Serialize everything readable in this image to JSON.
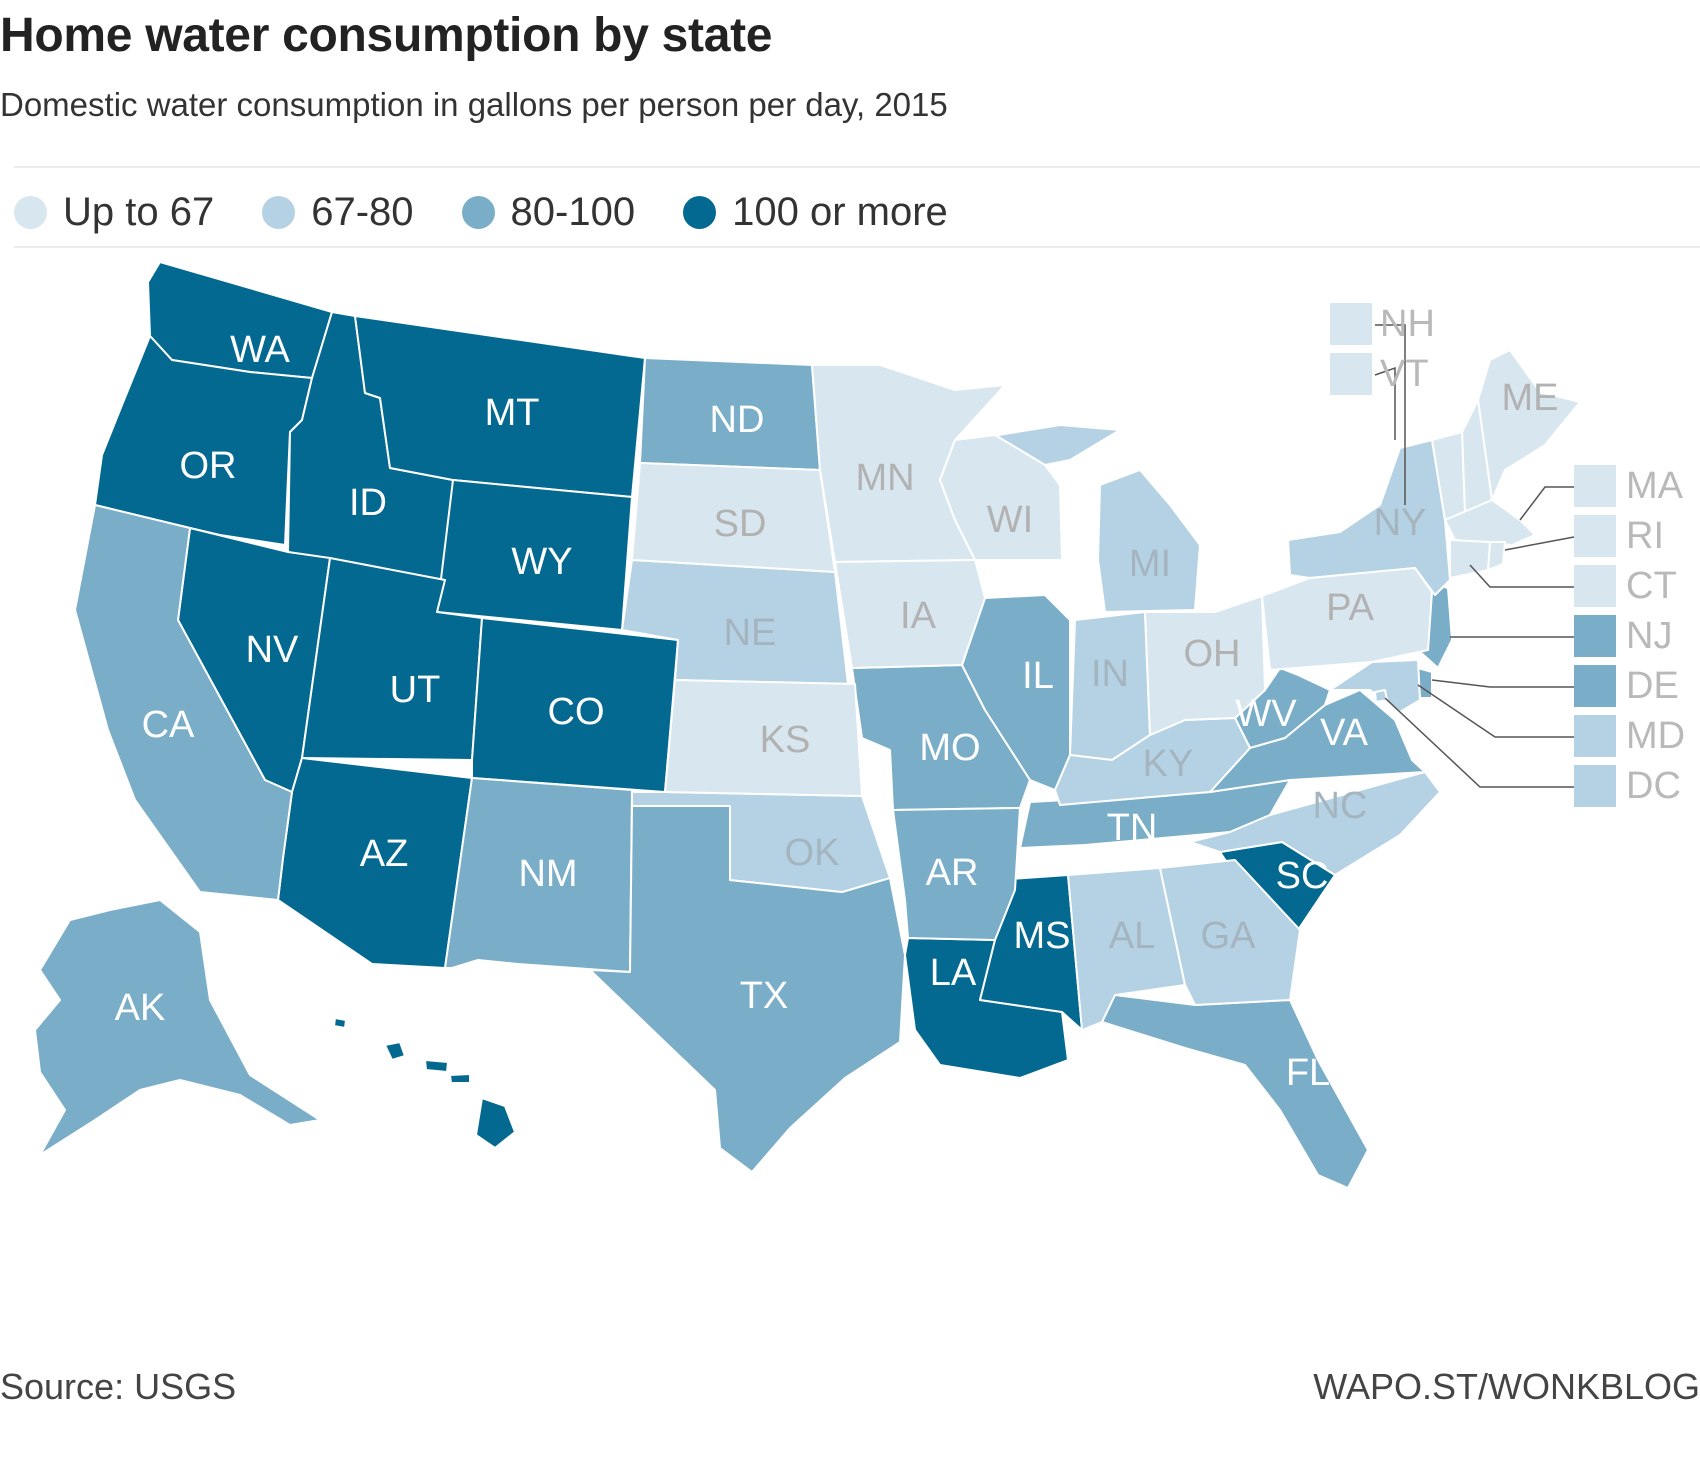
{
  "title": "Home water consumption by state",
  "subtitle": "Domestic water consumption in gallons per person per day, 2015",
  "colors": {
    "up_to_67": "#d8e6ef",
    "c67_80": "#b4d2e4",
    "c80_100": "#7aaec8",
    "c100_more": "#046990",
    "label_dark_bg": "#ffffff",
    "label_light_bg": "#b4b4b4",
    "border": "#ffffff"
  },
  "legend": [
    {
      "label": "Up to 67",
      "color_key": "up_to_67"
    },
    {
      "label": "67-80",
      "color_key": "c67_80"
    },
    {
      "label": "80-100",
      "color_key": "c80_100"
    },
    {
      "label": "100 or more",
      "color_key": "c100_more"
    }
  ],
  "states": [
    {
      "abbr": "WA",
      "category": "c100_more"
    },
    {
      "abbr": "OR",
      "category": "c100_more"
    },
    {
      "abbr": "ID",
      "category": "c100_more"
    },
    {
      "abbr": "MT",
      "category": "c100_more"
    },
    {
      "abbr": "WY",
      "category": "c100_more"
    },
    {
      "abbr": "NV",
      "category": "c100_more"
    },
    {
      "abbr": "UT",
      "category": "c100_more"
    },
    {
      "abbr": "CO",
      "category": "c100_more"
    },
    {
      "abbr": "AZ",
      "category": "c100_more"
    },
    {
      "abbr": "HI",
      "category": "c100_more"
    },
    {
      "abbr": "LA",
      "category": "c100_more"
    },
    {
      "abbr": "MS",
      "category": "c100_more"
    },
    {
      "abbr": "SC",
      "category": "c100_more"
    },
    {
      "abbr": "CA",
      "category": "c80_100"
    },
    {
      "abbr": "AK",
      "category": "c80_100"
    },
    {
      "abbr": "ND",
      "category": "c80_100"
    },
    {
      "abbr": "NM",
      "category": "c80_100"
    },
    {
      "abbr": "TX",
      "category": "c80_100"
    },
    {
      "abbr": "MO",
      "category": "c80_100"
    },
    {
      "abbr": "AR",
      "category": "c80_100"
    },
    {
      "abbr": "IL",
      "category": "c80_100"
    },
    {
      "abbr": "TN",
      "category": "c80_100"
    },
    {
      "abbr": "WV",
      "category": "c80_100"
    },
    {
      "abbr": "VA",
      "category": "c80_100"
    },
    {
      "abbr": "FL",
      "category": "c80_100"
    },
    {
      "abbr": "NJ",
      "category": "c80_100"
    },
    {
      "abbr": "DE",
      "category": "c80_100"
    },
    {
      "abbr": "NE",
      "category": "c67_80"
    },
    {
      "abbr": "OK",
      "category": "c67_80"
    },
    {
      "abbr": "MI",
      "category": "c67_80"
    },
    {
      "abbr": "IN",
      "category": "c67_80"
    },
    {
      "abbr": "KY",
      "category": "c67_80"
    },
    {
      "abbr": "NY",
      "category": "c67_80"
    },
    {
      "abbr": "NC",
      "category": "c67_80"
    },
    {
      "abbr": "AL",
      "category": "c67_80"
    },
    {
      "abbr": "GA",
      "category": "c67_80"
    },
    {
      "abbr": "MD",
      "category": "c67_80"
    },
    {
      "abbr": "DC",
      "category": "c67_80"
    },
    {
      "abbr": "SD",
      "category": "up_to_67"
    },
    {
      "abbr": "KS",
      "category": "up_to_67"
    },
    {
      "abbr": "MN",
      "category": "up_to_67"
    },
    {
      "abbr": "IA",
      "category": "up_to_67"
    },
    {
      "abbr": "WI",
      "category": "up_to_67"
    },
    {
      "abbr": "OH",
      "category": "up_to_67"
    },
    {
      "abbr": "PA",
      "category": "up_to_67"
    },
    {
      "abbr": "ME",
      "category": "up_to_67"
    },
    {
      "abbr": "NH",
      "category": "up_to_67"
    },
    {
      "abbr": "VT",
      "category": "up_to_67"
    },
    {
      "abbr": "MA",
      "category": "up_to_67"
    },
    {
      "abbr": "RI",
      "category": "up_to_67"
    },
    {
      "abbr": "CT",
      "category": "up_to_67"
    }
  ],
  "small_state_callouts": [
    "NH",
    "VT",
    "MA",
    "RI",
    "CT",
    "NJ",
    "DE",
    "MD",
    "DC"
  ],
  "footer": {
    "source": "Source: USGS",
    "credit": "WAPO.ST/WONKBLOG"
  }
}
